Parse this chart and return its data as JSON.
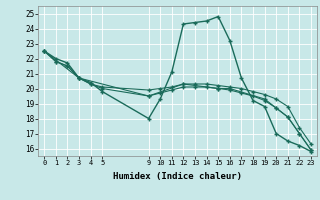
{
  "xlabel": "Humidex (Indice chaleur)",
  "xlim": [
    -0.5,
    23.5
  ],
  "ylim": [
    15.5,
    25.5
  ],
  "yticks": [
    16,
    17,
    18,
    19,
    20,
    21,
    22,
    23,
    24,
    25
  ],
  "xtick_vals": [
    0,
    1,
    2,
    3,
    4,
    5,
    9,
    10,
    11,
    12,
    13,
    14,
    15,
    16,
    17,
    18,
    19,
    20,
    21,
    22,
    23
  ],
  "bg_color": "#c8e8e8",
  "line_color": "#1a6b5a",
  "lines": [
    {
      "x": [
        0,
        1,
        2,
        3,
        4,
        5,
        9,
        10,
        11,
        12,
        13,
        14,
        15,
        16,
        17,
        18,
        19,
        20,
        21,
        22,
        23
      ],
      "y": [
        22.5,
        22.0,
        21.7,
        20.7,
        20.4,
        19.8,
        18.0,
        19.3,
        21.1,
        24.3,
        24.4,
        24.5,
        24.8,
        23.2,
        20.7,
        19.2,
        18.8,
        17.0,
        16.5,
        16.2,
        15.8
      ]
    },
    {
      "x": [
        0,
        1,
        2,
        3,
        4,
        5,
        9,
        10,
        11,
        12,
        13,
        14,
        15,
        16,
        17,
        18,
        19,
        20,
        21,
        22,
        23
      ],
      "y": [
        22.5,
        21.8,
        21.5,
        20.7,
        20.3,
        20.1,
        19.9,
        20.0,
        20.1,
        20.3,
        20.3,
        20.3,
        20.2,
        20.1,
        20.0,
        19.8,
        19.6,
        19.3,
        18.8,
        17.4,
        16.3
      ]
    },
    {
      "x": [
        0,
        1,
        2,
        3,
        4,
        5,
        9,
        10,
        11,
        12,
        13,
        14,
        15,
        16,
        17,
        18,
        19,
        20,
        21,
        22,
        23
      ],
      "y": [
        22.5,
        21.8,
        21.5,
        20.7,
        20.3,
        20.0,
        19.5,
        19.7,
        19.9,
        20.1,
        20.1,
        20.1,
        20.0,
        19.9,
        19.7,
        19.5,
        19.2,
        18.7,
        18.1,
        17.0,
        15.9
      ]
    },
    {
      "x": [
        0,
        3,
        9,
        12,
        15,
        16,
        19,
        20,
        21,
        22,
        23
      ],
      "y": [
        22.5,
        20.7,
        19.5,
        20.3,
        20.0,
        20.0,
        19.3,
        18.7,
        18.1,
        17.0,
        15.9
      ]
    }
  ]
}
